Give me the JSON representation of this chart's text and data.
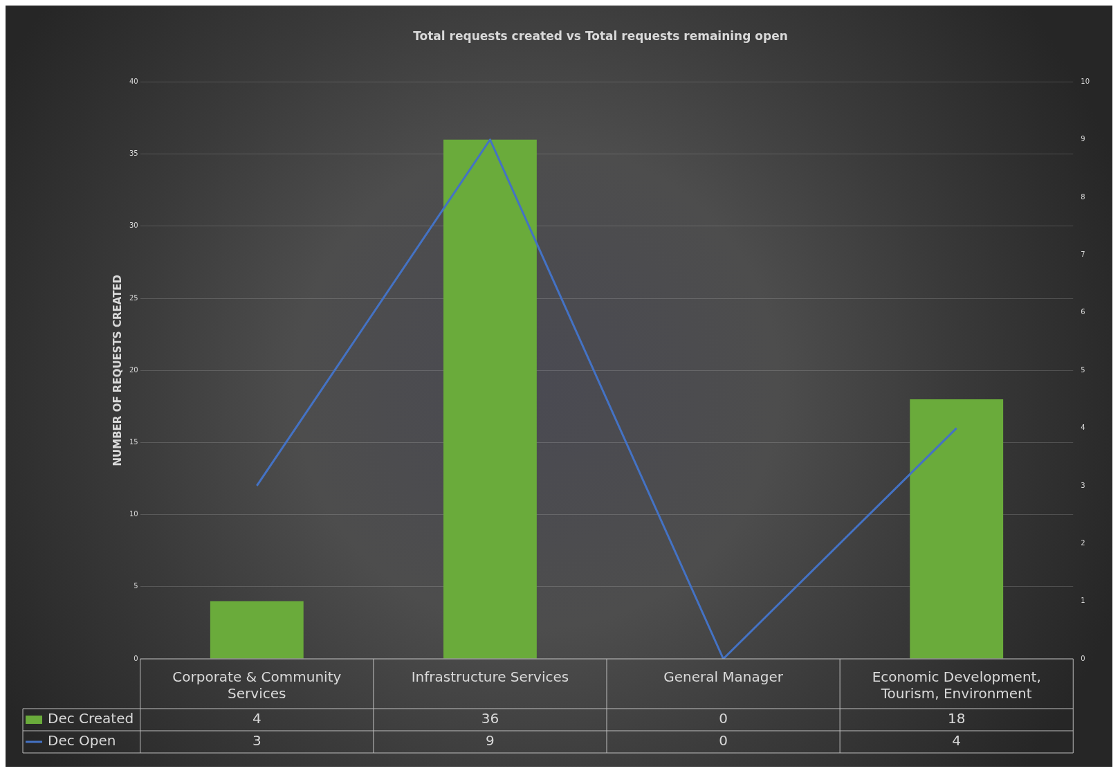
{
  "chart_data": {
    "type": "bar",
    "title": "Total requests created vs Total requests remaining open",
    "ylabel": "NUMBER OF REQUESTS CREATED",
    "categories": [
      "Corporate & Community Services",
      "Infrastructure Services",
      "General Manager",
      "Economic Development, Tourism, Environment"
    ],
    "series": [
      {
        "name": "Dec Created",
        "color": "#6aab3b",
        "values": [
          4,
          36,
          0,
          18
        ]
      },
      {
        "name": "Dec Open",
        "type": "line",
        "axis": "y2",
        "color": "#4472c4",
        "values": [
          3,
          9,
          0,
          4
        ]
      }
    ],
    "ylim": [
      0,
      40
    ],
    "yticks": [
      0,
      5,
      10,
      15,
      20,
      25,
      30,
      35,
      40
    ],
    "y2lim": [
      0,
      10
    ],
    "y2ticks": [
      0,
      1,
      2,
      3,
      4,
      5,
      6,
      7,
      8,
      9,
      10
    ],
    "grid": "y",
    "legend": "bottom",
    "data_labels": true,
    "marker": "none"
  }
}
